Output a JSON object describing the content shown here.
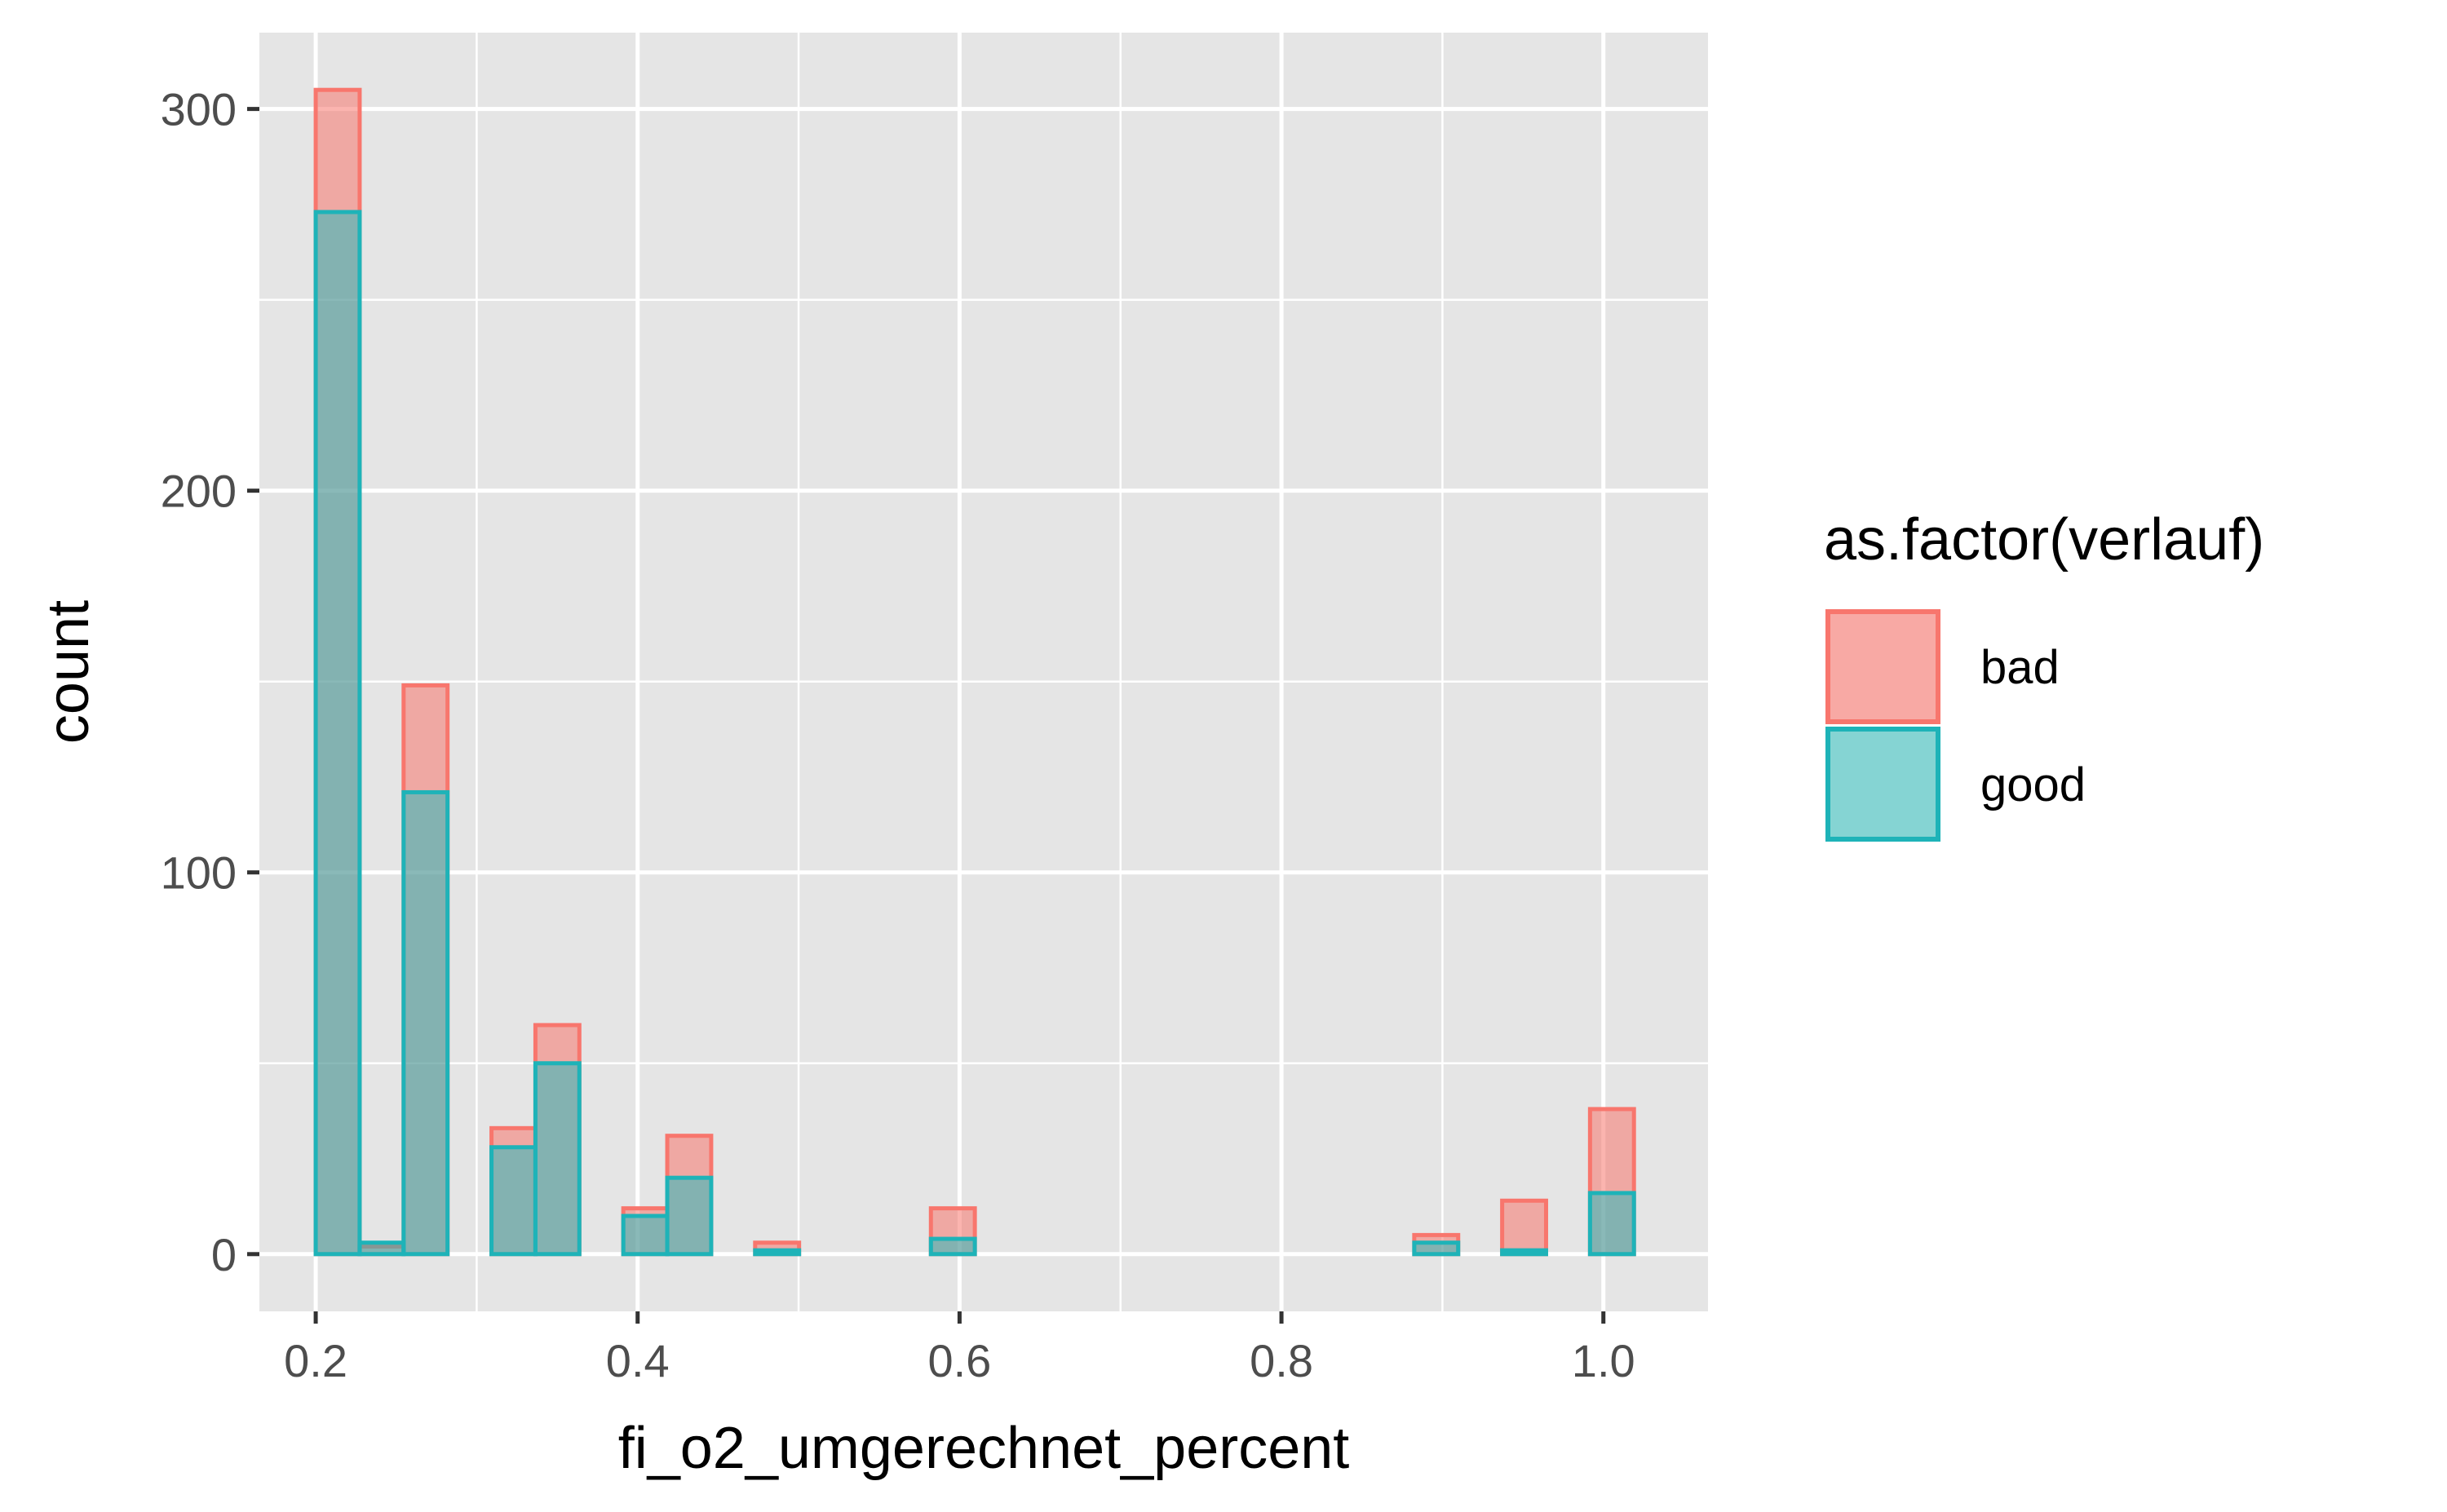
{
  "chart_data": {
    "type": "bar",
    "subtype": "overlapping-histogram",
    "title": "",
    "xlabel": "fi_o2_umgerechnet_percent",
    "ylabel": "count",
    "xlim": [
      0.165,
      1.065
    ],
    "ylim": [
      -15,
      320
    ],
    "xticks": [
      0.2,
      0.4,
      0.6,
      0.8,
      1.0
    ],
    "xtick_labels": [
      "0.2",
      "0.4",
      "0.6",
      "0.8",
      "1.0"
    ],
    "yticks": [
      0,
      100,
      200,
      300
    ],
    "ytick_labels": [
      "0",
      "100",
      "200",
      "300"
    ],
    "bin_width": 0.0273,
    "bin_starts": [
      0.2,
      0.2273,
      0.2546,
      0.2819,
      0.3092,
      0.3365,
      0.3638,
      0.3911,
      0.4184,
      0.4457,
      0.473,
      0.5003,
      0.5276,
      0.5549,
      0.5822,
      0.6095,
      0.6368,
      0.6641,
      0.6914,
      0.7187,
      0.746,
      0.7733,
      0.8006,
      0.8279,
      0.8552,
      0.8825,
      0.9098,
      0.9371,
      0.9644,
      0.9917
    ],
    "grid": true,
    "legend_position": "right",
    "series": [
      {
        "name": "bad",
        "color": "#F8766D",
        "values": [
          305,
          2,
          149,
          0,
          33,
          60,
          0,
          12,
          31,
          0,
          3,
          0,
          0,
          0,
          12,
          0,
          0,
          0,
          0,
          0,
          0,
          0,
          0,
          0,
          0,
          5,
          0,
          14,
          0,
          38
        ]
      },
      {
        "name": "good",
        "color": "#00BFC4",
        "values": [
          273,
          3,
          121,
          0,
          28,
          50,
          0,
          10,
          20,
          0,
          1,
          0,
          0,
          0,
          4,
          0,
          0,
          0,
          0,
          0,
          0,
          0,
          0,
          0,
          0,
          3,
          0,
          1,
          0,
          16
        ]
      }
    ]
  },
  "legend": {
    "title": "as.factor(verlauf)",
    "items": [
      {
        "label": "bad",
        "color": "#F8766D"
      },
      {
        "label": "good",
        "color": "#00BFC4"
      }
    ]
  },
  "colors": {
    "panel_background": "#E5E5E5",
    "grid_major": "#FFFFFF",
    "tick_text": "#4D4D4D"
  }
}
